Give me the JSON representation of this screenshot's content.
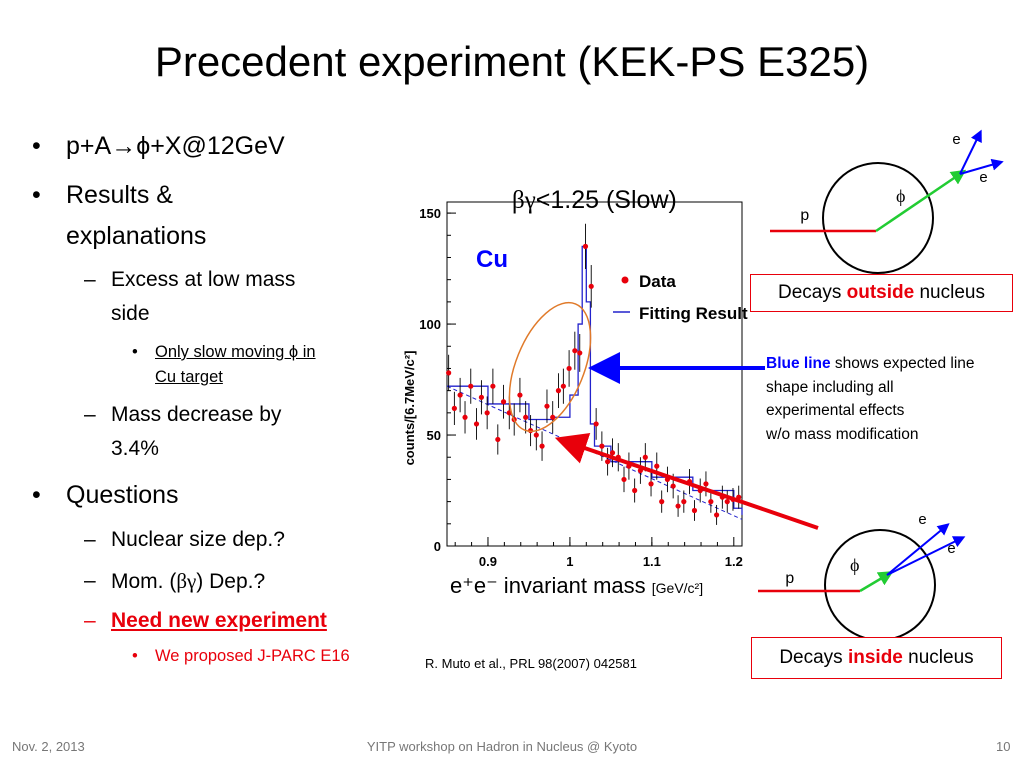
{
  "slide": {
    "title": "Precedent experiment (KEK-PS E325)",
    "bullets": [
      {
        "prefix": "p+A",
        "arrow": "→",
        "suffix": "ϕ+X@12GeV"
      },
      {
        "line1": "Results &",
        "line2": "explanations"
      },
      {
        "label": "Questions"
      }
    ],
    "sub_bullets": {
      "excess_line1": "Excess at low mass",
      "excess_line2": "side",
      "only_slow_line1": "Only slow moving ϕ in",
      "only_slow_line2": "Cu target",
      "mass_decrease_line1": "Mass decrease by",
      "mass_decrease_line2": "3.4%",
      "nuclear_size": "Nuclear size dep.?",
      "mom_prefix": "Mom. (",
      "mom_bg": "βγ",
      "mom_suffix": ") Dep.?",
      "need_new": "Need new experiment",
      "proposed": "We proposed J-PARC E16"
    },
    "dash": "–",
    "dot": "•"
  },
  "plot": {
    "heading_bg": "βγ",
    "heading_rest": "<1.25 (Slow)",
    "target": "Cu",
    "ylabel": "counts/[6.7MeV/c²]",
    "xlabel_main": "e⁺e⁻ invariant mass",
    "xlabel_unit": "[GeV/c²]",
    "legend_data": "Data",
    "legend_fit": "Fitting Result",
    "citation": "R. Muto et al., PRL 98(2007) 042581"
  },
  "chart_data": {
    "type": "scatter",
    "xlabel": "e⁺e⁻ invariant mass [GeV/c²]",
    "ylabel": "counts/[6.7MeV/c²]",
    "xlim": [
      0.85,
      1.21
    ],
    "ylim": [
      0,
      155
    ],
    "xticks": [
      "0.9",
      "1",
      "1.1",
      "1.2"
    ],
    "yticks": [
      "0",
      "50",
      "100",
      "150"
    ],
    "series": [
      {
        "name": "Data",
        "x": [
          0.852,
          0.859,
          0.866,
          0.872,
          0.879,
          0.886,
          0.892,
          0.899,
          0.906,
          0.912,
          0.919,
          0.926,
          0.932,
          0.939,
          0.946,
          0.952,
          0.959,
          0.966,
          0.972,
          0.979,
          0.986,
          0.992,
          0.999,
          1.006,
          1.012,
          1.019,
          1.026,
          1.032,
          1.039,
          1.046,
          1.052,
          1.059,
          1.066,
          1.072,
          1.079,
          1.086,
          1.092,
          1.099,
          1.106,
          1.112,
          1.119,
          1.126,
          1.132,
          1.139,
          1.146,
          1.152,
          1.159,
          1.166,
          1.172,
          1.179,
          1.186,
          1.192,
          1.199,
          1.206
        ],
        "y": [
          78,
          62,
          68,
          58,
          72,
          55,
          67,
          60,
          72,
          48,
          65,
          60,
          57,
          68,
          58,
          52,
          50,
          45,
          63,
          58,
          70,
          72,
          80,
          88,
          87,
          135,
          117,
          55,
          45,
          38,
          42,
          40,
          30,
          36,
          25,
          34,
          40,
          28,
          36,
          20,
          30,
          27,
          18,
          20,
          29,
          16,
          25,
          28,
          20,
          14,
          22,
          20,
          21,
          22
        ]
      },
      {
        "name": "Fitting Result",
        "x": [
          0.85,
          0.9,
          0.95,
          0.98,
          1.0,
          1.01,
          1.015,
          1.02,
          1.025,
          1.03,
          1.05,
          1.1,
          1.15,
          1.2,
          1.21
        ],
        "y": [
          72,
          64,
          57,
          58,
          68,
          100,
          135,
          110,
          55,
          45,
          38,
          31,
          25,
          17,
          14
        ]
      }
    ]
  },
  "diagrams": {
    "top": {
      "p": "p",
      "phi": "ϕ",
      "e1": "e",
      "e2": "e",
      "box_prefix": "Decays ",
      "box_key": "outside",
      "box_suffix": " nucleus"
    },
    "bottom": {
      "p": "p",
      "phi": "ϕ",
      "e1": "e",
      "e2": "e",
      "box_prefix": "Decays ",
      "box_key": "inside",
      "box_suffix": " nucleus"
    }
  },
  "note": {
    "blue_line": "Blue line",
    "line1_rest": " shows expected line",
    "line2": "shape including all",
    "line3": "experimental effects",
    "line4": "w/o  mass modification"
  },
  "footer": {
    "date": "Nov. 2, 2013",
    "center": "YITP workshop on  Hadron in Nucleus @ Kyoto",
    "page": "10"
  },
  "colors": {
    "accent_red": "#e8000b",
    "blue": "#0000ff",
    "green": "#22cc33",
    "data_red": "#e8000b",
    "fit_blue": "#2222cc",
    "oval": "#e07a2a"
  }
}
